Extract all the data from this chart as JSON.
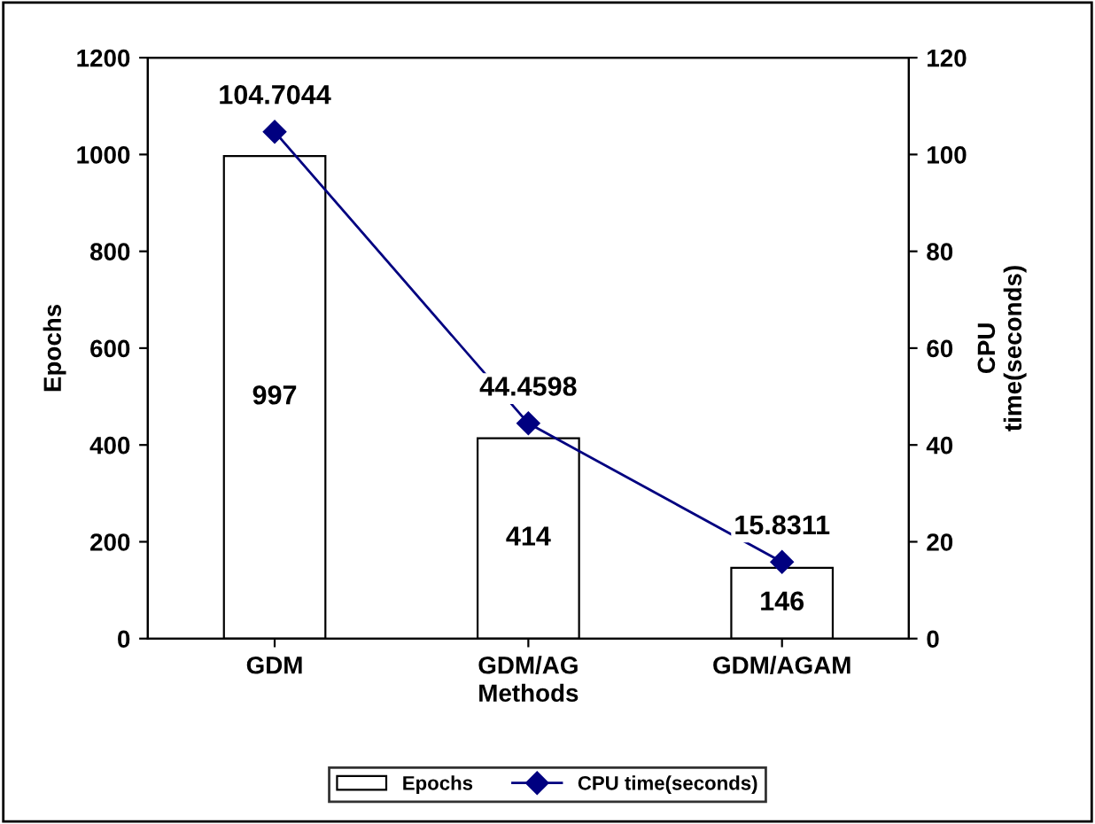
{
  "chart_data": {
    "type": "bar",
    "xlabel": "Methods",
    "ylabel": "Epochs",
    "y2label": "CPU\ntime(seconds)",
    "categories": [
      "GDM",
      "GDM/AG",
      "GDM/AGAM"
    ],
    "series": [
      {
        "name": "Epochs",
        "color": "#ffffff",
        "values": [
          997,
          414,
          146
        ]
      },
      {
        "name": "CPU time(seconds)",
        "type": "line",
        "axis": "y2",
        "color": "#000080",
        "marker": "diamond",
        "values": [
          104.7044,
          44.4598,
          15.8311
        ]
      }
    ],
    "ylim": [
      0,
      1200
    ],
    "yticks": [
      0,
      200,
      400,
      600,
      800,
      1000,
      1200
    ],
    "y2lim": [
      0,
      120
    ],
    "y2ticks": [
      0,
      20,
      40,
      60,
      80,
      100,
      120
    ],
    "data_labels": true,
    "grid": false,
    "legend": "bottom"
  }
}
